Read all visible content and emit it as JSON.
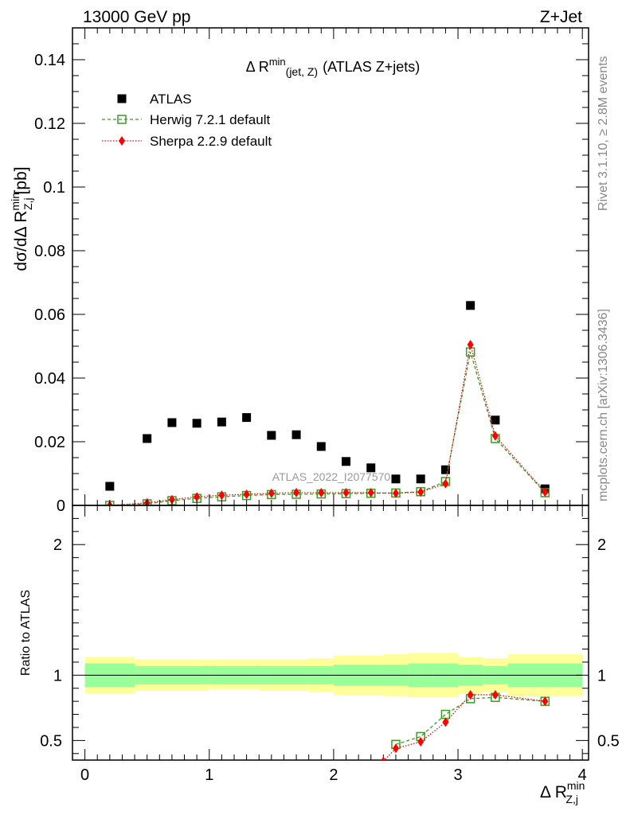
{
  "header": {
    "left": "13000 GeV pp",
    "right": "Z+Jet"
  },
  "side_text": {
    "rivet": "Rivet 3.1.10, ≥ 2.8M events",
    "mcplots": "mcplots.cern.ch [arXiv:1306.3436]"
  },
  "watermark": "ATLAS_2022_I2077570",
  "chart_data": {
    "type": "scatter",
    "title": {
      "prefix": "Δ R",
      "sup": "min",
      "sub": "(jet, Z)",
      "suffix": "(ATLAS Z+jets)"
    },
    "xlabel": {
      "prefix": "Δ R",
      "sup": "min",
      "sub": "Z,j"
    },
    "ylabel": {
      "prefix": "dσ/dΔ R",
      "sup": "min",
      "sub": "Z,j",
      "suffix": "[pb]"
    },
    "ratio_ylabel": "Ratio to ATLAS",
    "xlim": [
      -0.1,
      4.05
    ],
    "ylim": [
      0,
      0.15
    ],
    "ratio_ylim": [
      0.35,
      2.3
    ],
    "x_ticks": [
      "0",
      "1",
      "2",
      "3",
      "4"
    ],
    "y_ticks": [
      "0",
      "0.02",
      "0.04",
      "0.06",
      "0.08",
      "0.1",
      "0.12",
      "0.14"
    ],
    "ratio_ticks": [
      "0.5",
      "1",
      "2"
    ],
    "legend_position": "top-left",
    "series": [
      {
        "name": "ATLAS",
        "marker": "filled-square",
        "color": "#000000",
        "x": [
          0.2,
          0.5,
          0.7,
          0.9,
          1.1,
          1.3,
          1.5,
          1.7,
          1.9,
          2.1,
          2.3,
          2.5,
          2.7,
          2.9,
          3.1,
          3.3,
          3.7
        ],
        "y": [
          0.006,
          0.021,
          0.026,
          0.0258,
          0.0262,
          0.0276,
          0.022,
          0.0222,
          0.0185,
          0.0138,
          0.0118,
          0.0083,
          0.0083,
          0.0112,
          0.0628,
          0.0268,
          0.0052
        ]
      },
      {
        "name": "Herwig 7.2.1 default",
        "marker": "open-square",
        "line": "dashed",
        "color": "#3a9d23",
        "x": [
          0.2,
          0.5,
          0.7,
          0.9,
          1.1,
          1.3,
          1.5,
          1.7,
          1.9,
          2.1,
          2.3,
          2.5,
          2.7,
          2.9,
          3.1,
          3.3,
          3.7
        ],
        "y": [
          0.0,
          0.0005,
          0.0015,
          0.0022,
          0.0027,
          0.0031,
          0.0034,
          0.0035,
          0.0036,
          0.0037,
          0.0038,
          0.0039,
          0.0043,
          0.0075,
          0.0482,
          0.021,
          0.004
        ],
        "ratio_x": [
          2.5,
          2.7,
          2.9,
          3.1,
          3.3,
          3.7
        ],
        "ratio": [
          0.47,
          0.53,
          0.7,
          0.82,
          0.83,
          0.8
        ]
      },
      {
        "name": "Sherpa 2.2.9 default",
        "marker": "red-diamond",
        "line": "dotted",
        "color": "#ff0000",
        "x": [
          0.2,
          0.5,
          0.7,
          0.9,
          1.1,
          1.3,
          1.5,
          1.7,
          1.9,
          2.1,
          2.3,
          2.5,
          2.7,
          2.9,
          3.1,
          3.3,
          3.7
        ],
        "y": [
          0.0,
          0.0008,
          0.0018,
          0.0027,
          0.0032,
          0.0035,
          0.0038,
          0.004,
          0.004,
          0.004,
          0.004,
          0.0038,
          0.0042,
          0.0068,
          0.0505,
          0.0218,
          0.0042
        ],
        "ratio_x": [
          2.4,
          2.5,
          2.7,
          2.9,
          3.1,
          3.3,
          3.7
        ],
        "ratio": [
          0.34,
          0.44,
          0.49,
          0.64,
          0.85,
          0.85,
          0.8
        ]
      }
    ],
    "ratio_bands": {
      "edges": [
        0.0,
        0.4,
        1.0,
        1.4,
        1.8,
        2.0,
        2.4,
        2.6,
        2.8,
        3.0,
        3.2,
        3.4,
        4.0
      ],
      "inner_lo": [
        0.91,
        0.93,
        0.93,
        0.93,
        0.93,
        0.92,
        0.92,
        0.91,
        0.91,
        0.92,
        0.93,
        0.91
      ],
      "inner_hi": [
        1.09,
        1.07,
        1.07,
        1.07,
        1.07,
        1.08,
        1.08,
        1.09,
        1.09,
        1.08,
        1.07,
        1.09
      ],
      "outer_lo": [
        0.86,
        0.88,
        0.89,
        0.88,
        0.87,
        0.85,
        0.84,
        0.83,
        0.83,
        0.86,
        0.87,
        0.84
      ],
      "outer_hi": [
        1.14,
        1.12,
        1.12,
        1.12,
        1.13,
        1.15,
        1.16,
        1.17,
        1.17,
        1.14,
        1.13,
        1.16
      ],
      "inner_color": "#99ff99",
      "outer_color": "#ffff99"
    }
  }
}
